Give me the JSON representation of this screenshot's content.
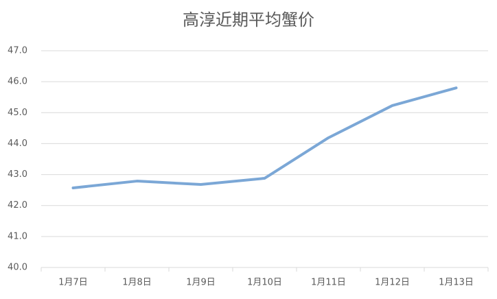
{
  "chart_data": {
    "type": "line",
    "title": "高淳近期平均蟹价",
    "categories": [
      "1月7日",
      "1月8日",
      "1月9日",
      "1月10日",
      "1月11日",
      "1月12日",
      "1月13日"
    ],
    "values": [
      42.57,
      42.79,
      42.68,
      42.88,
      44.19,
      45.23,
      45.8
    ],
    "color": "#7ba7d6",
    "ylim": [
      40,
      47
    ],
    "yticks": [
      {
        "value": 40,
        "label": "40.0"
      },
      {
        "value": 41,
        "label": "41.0"
      },
      {
        "value": 42,
        "label": "42.0"
      },
      {
        "value": 43,
        "label": "43.0"
      },
      {
        "value": 44,
        "label": "44.0"
      },
      {
        "value": 45,
        "label": "45.0"
      },
      {
        "value": 46,
        "label": "46.0"
      },
      {
        "value": 47,
        "label": "47.0"
      }
    ],
    "grid": true
  }
}
